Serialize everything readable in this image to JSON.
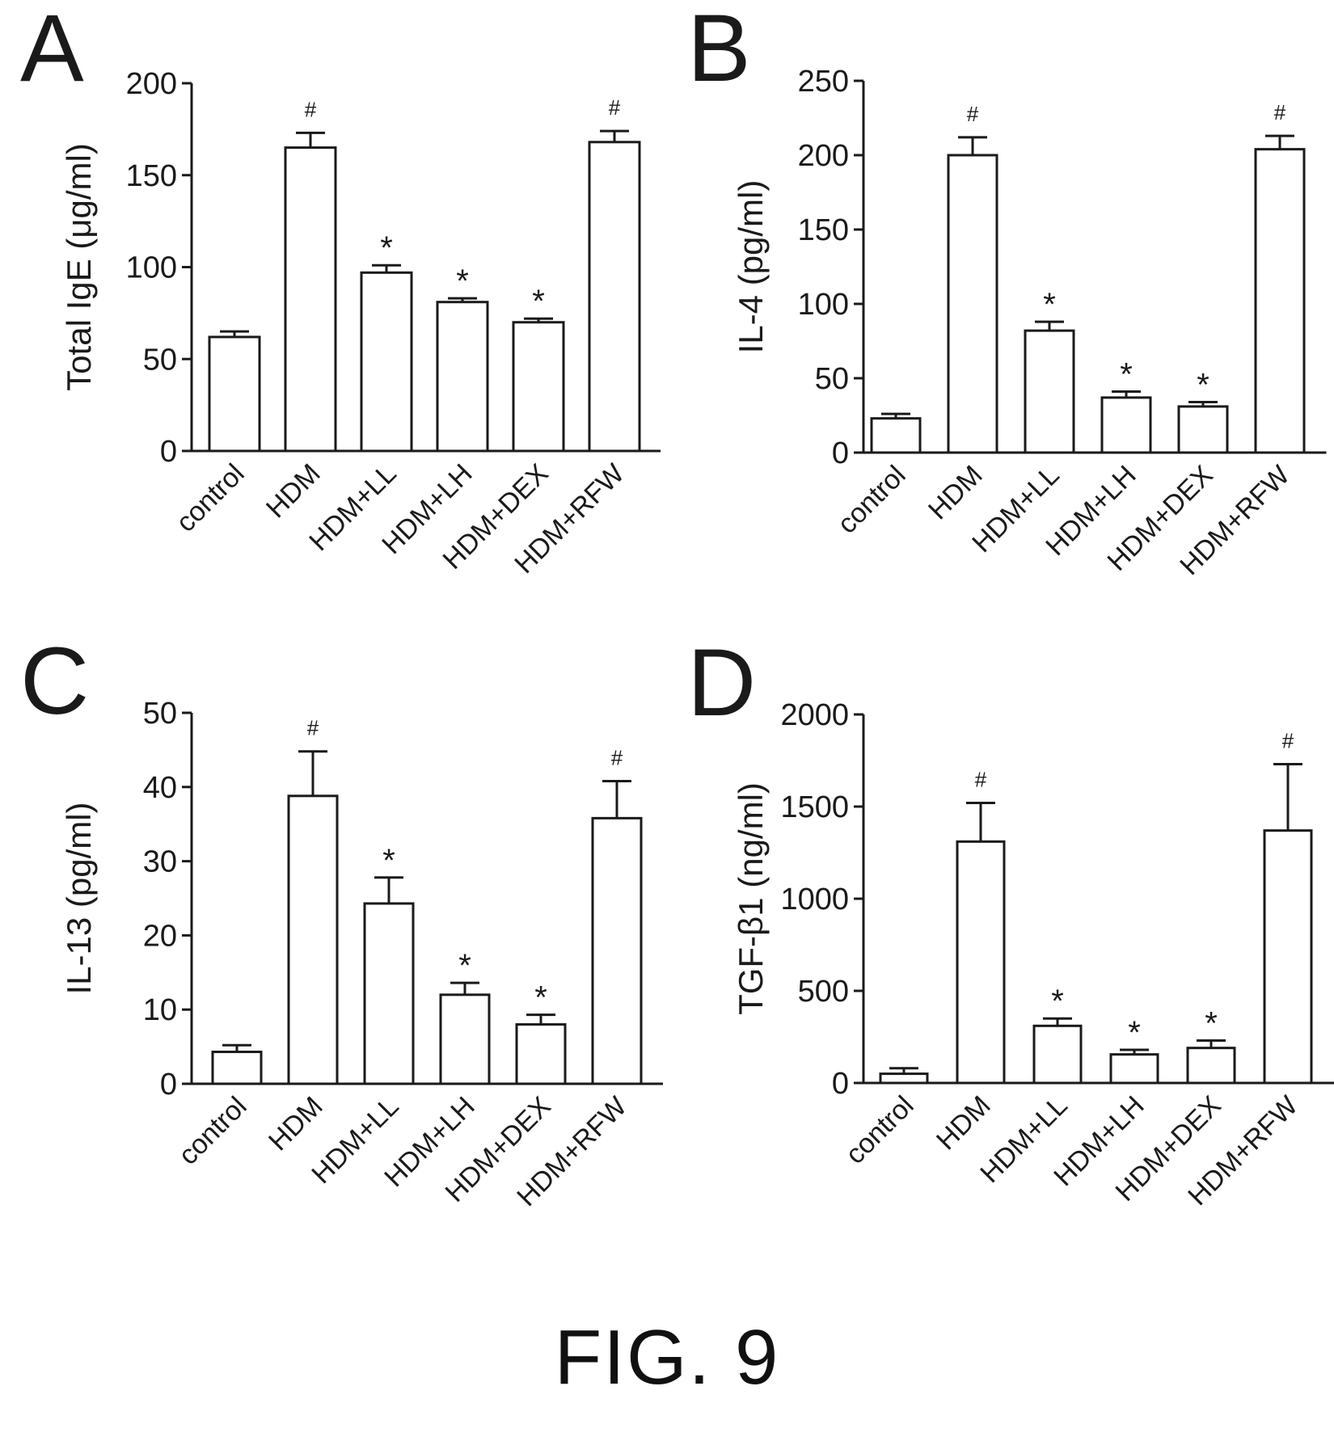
{
  "figure_caption": "FIG. 9",
  "colors": {
    "ink": "#1a1a1a",
    "bar_fill": "#ffffff"
  },
  "chart_data": [
    {
      "panel": "A",
      "type": "bar",
      "ylabel": "Total IgE (μg/ml)",
      "ylim": [
        0,
        200
      ],
      "yticks": [
        "0",
        "50",
        "100",
        "150",
        "200"
      ],
      "categories": [
        "control",
        "HDM",
        "HDM+LL",
        "HDM+LH",
        "HDM+DEX",
        "HDM+RFW"
      ],
      "values": [
        62,
        165,
        97,
        81,
        70,
        168
      ],
      "errors": [
        3,
        8,
        4,
        2,
        2,
        6
      ],
      "annotations": [
        "",
        "#",
        "*",
        "*",
        "*",
        "#"
      ]
    },
    {
      "panel": "B",
      "type": "bar",
      "ylabel": "IL-4 (pg/ml)",
      "ylim": [
        0,
        250
      ],
      "yticks": [
        "0",
        "50",
        "100",
        "150",
        "200",
        "250"
      ],
      "categories": [
        "control",
        "HDM",
        "HDM+LL",
        "HDM+LH",
        "HDM+DEX",
        "HDM+RFW"
      ],
      "values": [
        23,
        200,
        82,
        37,
        31,
        204
      ],
      "errors": [
        3,
        12,
        6,
        4,
        3,
        9
      ],
      "annotations": [
        "",
        "#",
        "*",
        "*",
        "*",
        "#"
      ]
    },
    {
      "panel": "C",
      "type": "bar",
      "ylabel": "IL-13 (pg/ml)",
      "ylim": [
        0,
        50
      ],
      "yticks": [
        "0",
        "10",
        "20",
        "30",
        "40",
        "50"
      ],
      "categories": [
        "control",
        "HDM",
        "HDM+LL",
        "HDM+LH",
        "HDM+DEX",
        "HDM+RFW"
      ],
      "values": [
        4.3,
        38.8,
        24.3,
        12,
        8,
        35.8
      ],
      "errors": [
        0.9,
        6,
        3.5,
        1.6,
        1.3,
        5
      ],
      "annotations": [
        "",
        "#",
        "*",
        "*",
        "*",
        "#"
      ]
    },
    {
      "panel": "D",
      "type": "bar",
      "ylabel": "TGF-β1 (ng/ml)",
      "ylim": [
        0,
        2000
      ],
      "yticks": [
        "0",
        "500",
        "1000",
        "1500",
        "2000"
      ],
      "categories": [
        "control",
        "HDM",
        "HDM+LL",
        "HDM+LH",
        "HDM+DEX",
        "HDM+RFW"
      ],
      "values": [
        50,
        1310,
        310,
        155,
        190,
        1370
      ],
      "errors": [
        30,
        210,
        40,
        25,
        40,
        360
      ],
      "annotations": [
        "",
        "#",
        "*",
        "*",
        "*",
        "#"
      ]
    }
  ]
}
